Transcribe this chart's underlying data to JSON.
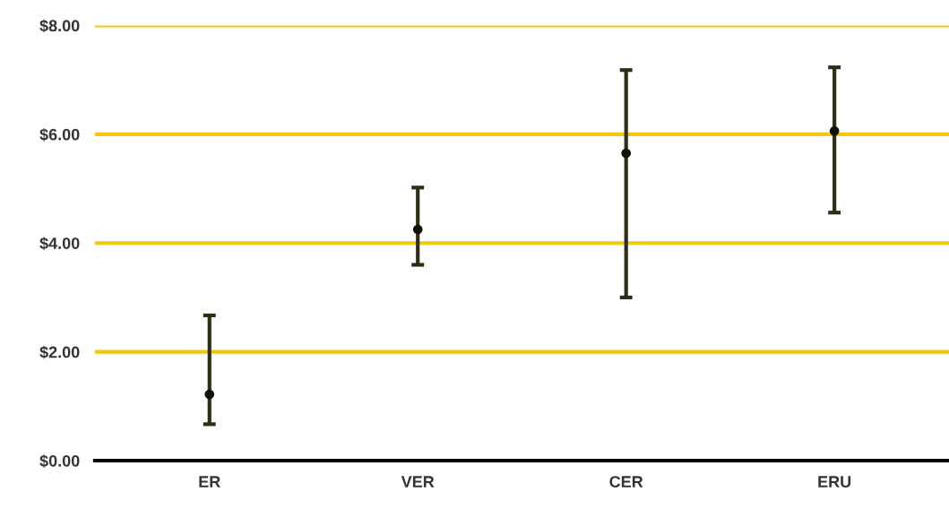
{
  "chart_data": {
    "type": "scatter",
    "categories": [
      "ER",
      "VER",
      "CER",
      "ERU"
    ],
    "values": [
      1.22,
      4.25,
      5.65,
      6.06
    ],
    "errors": [
      [
        0.67,
        2.67
      ],
      [
        3.6,
        5.02
      ],
      [
        3.0,
        7.18
      ],
      [
        4.56,
        7.23
      ]
    ],
    "color": "#111108",
    "marker": "circle",
    "ylim": [
      0,
      8
    ],
    "yticks": [
      {
        "value": 0,
        "label": "$0.00"
      },
      {
        "value": 2,
        "label": "$2.00"
      },
      {
        "value": 4,
        "label": "$4.00"
      },
      {
        "value": 6,
        "label": "$6.00"
      },
      {
        "value": 8,
        "label": "$8.00"
      }
    ],
    "grid": "y"
  }
}
